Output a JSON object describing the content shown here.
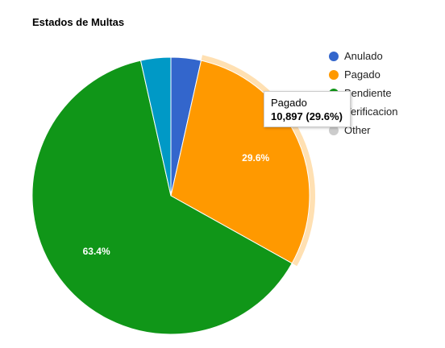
{
  "chart_data": {
    "type": "pie",
    "title": "Estados de Multas",
    "legend_position": "right",
    "slices": [
      {
        "name": "Anulado",
        "value": 3.5,
        "color": "#3366cc"
      },
      {
        "name": "Pagado",
        "value": 29.6,
        "color": "#ff9900",
        "label": "29.6%"
      },
      {
        "name": "Pendiente",
        "value": 63.4,
        "color": "#109618",
        "label": "63.4%"
      },
      {
        "name": "Verificacion",
        "value": 3.5,
        "color": "#0099c6"
      },
      {
        "name": "Other",
        "value": 0,
        "color": "#cccccc"
      }
    ],
    "highlighted_slice": "Pagado",
    "tooltip": {
      "name": "Pagado",
      "value_text": "10,897 (29.6%)"
    }
  }
}
